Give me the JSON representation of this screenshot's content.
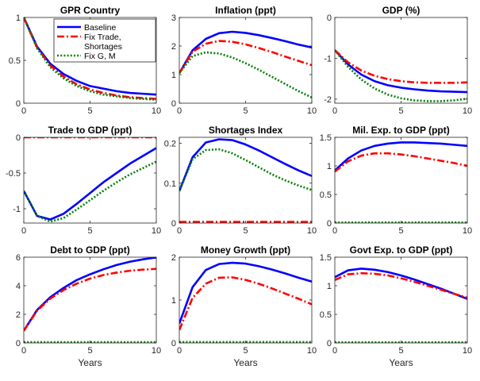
{
  "chart_data": {
    "type": "line",
    "legend": {
      "location": "first-panel-top-right",
      "entries": [
        "Baseline",
        "Fix Trade, Shortages",
        "Fix G, M"
      ]
    },
    "series_styles": [
      {
        "name": "Baseline",
        "color": "#0000ff",
        "dash": "solid"
      },
      {
        "name": "Fix Trade, Shortages",
        "color": "#ff0000",
        "dash": "dashdot"
      },
      {
        "name": "Fix G, M",
        "color": "#008000",
        "dash": "dotted"
      }
    ],
    "x": [
      0,
      1,
      2,
      3,
      4,
      5,
      6,
      7,
      8,
      9,
      10
    ],
    "panels": [
      {
        "title": "GPR Country",
        "xlabel": "",
        "ylim": [
          0,
          1
        ],
        "yticks": [
          "0",
          "0.5",
          "1"
        ],
        "xticks": [
          "0",
          "5",
          "10"
        ],
        "has_legend": true,
        "series": [
          {
            "name": "Baseline",
            "values": [
              1.0,
              0.66,
              0.46,
              0.34,
              0.26,
              0.2,
              0.17,
              0.14,
              0.12,
              0.11,
              0.1
            ]
          },
          {
            "name": "Fix Trade, Shortages",
            "values": [
              1.0,
              0.65,
              0.44,
              0.31,
              0.22,
              0.16,
              0.12,
              0.09,
              0.07,
              0.06,
              0.05
            ]
          },
          {
            "name": "Fix G, M",
            "values": [
              1.0,
              0.64,
              0.42,
              0.29,
              0.2,
              0.14,
              0.1,
              0.08,
              0.06,
              0.05,
              0.04
            ]
          }
        ]
      },
      {
        "title": "Inflation (ppt)",
        "xlabel": "",
        "ylim": [
          0,
          3
        ],
        "yticks": [
          "0",
          "1",
          "2",
          "3"
        ],
        "xticks": [
          "0",
          "5",
          "10"
        ],
        "has_legend": false,
        "series": [
          {
            "name": "Baseline",
            "values": [
              1.05,
              1.85,
              2.25,
              2.45,
              2.5,
              2.46,
              2.38,
              2.28,
              2.17,
              2.05,
              1.95
            ]
          },
          {
            "name": "Fix Trade, Shortages",
            "values": [
              1.05,
              1.8,
              2.08,
              2.18,
              2.15,
              2.06,
              1.93,
              1.79,
              1.63,
              1.48,
              1.33
            ]
          },
          {
            "name": "Fix G, M",
            "values": [
              1.05,
              1.65,
              1.78,
              1.74,
              1.6,
              1.4,
              1.17,
              0.92,
              0.67,
              0.42,
              0.2
            ]
          }
        ]
      },
      {
        "title": "GDP (%)",
        "xlabel": "",
        "ylim": [
          -2.1,
          0
        ],
        "yticks": [
          "-2",
          "-1",
          "0"
        ],
        "xticks": [
          "0",
          "5",
          "10"
        ],
        "has_legend": false,
        "series": [
          {
            "name": "Baseline",
            "values": [
              -0.8,
              -1.15,
              -1.4,
              -1.56,
              -1.66,
              -1.72,
              -1.76,
              -1.79,
              -1.81,
              -1.82,
              -1.83
            ]
          },
          {
            "name": "Fix Trade, Shortages",
            "values": [
              -0.8,
              -1.1,
              -1.3,
              -1.43,
              -1.51,
              -1.56,
              -1.59,
              -1.6,
              -1.6,
              -1.6,
              -1.59
            ]
          },
          {
            "name": "Fix G, M",
            "values": [
              -0.8,
              -1.21,
              -1.52,
              -1.74,
              -1.89,
              -1.98,
              -2.03,
              -2.05,
              -2.05,
              -2.03,
              -1.99
            ]
          }
        ]
      },
      {
        "title": "Trade to GDP (ppt)",
        "xlabel": "",
        "ylim": [
          -1.2,
          0
        ],
        "yticks": [
          "-1",
          "-0.5",
          "0"
        ],
        "xticks": [
          "0",
          "5",
          "10"
        ],
        "has_legend": false,
        "series": [
          {
            "name": "Baseline",
            "values": [
              -0.75,
              -1.1,
              -1.15,
              -1.07,
              -0.93,
              -0.78,
              -0.63,
              -0.5,
              -0.37,
              -0.26,
              -0.15
            ]
          },
          {
            "name": "Fix Trade, Shortages",
            "values": [
              0,
              0,
              0,
              0,
              0,
              0,
              0,
              0,
              0,
              0,
              0
            ]
          },
          {
            "name": "Fix G, M",
            "values": [
              -0.75,
              -1.1,
              -1.18,
              -1.13,
              -1.01,
              -0.88,
              -0.75,
              -0.63,
              -0.52,
              -0.43,
              -0.34
            ]
          }
        ]
      },
      {
        "title": "Shortages Index",
        "xlabel": "",
        "ylim": [
          0,
          0.215
        ],
        "yticks": [
          "0",
          "0.1",
          "0.2"
        ],
        "xticks": [
          "0",
          "5",
          "10"
        ],
        "has_legend": false,
        "series": [
          {
            "name": "Baseline",
            "values": [
              0.08,
              0.165,
              0.202,
              0.21,
              0.208,
              0.197,
              0.182,
              0.165,
              0.148,
              0.132,
              0.118
            ]
          },
          {
            "name": "Fix Trade, Shortages",
            "values": [
              0.003,
              0.003,
              0.003,
              0.003,
              0.003,
              0.003,
              0.003,
              0.003,
              0.003,
              0.003,
              0.003
            ]
          },
          {
            "name": "Fix G, M",
            "values": [
              0.08,
              0.16,
              0.183,
              0.185,
              0.175,
              0.158,
              0.14,
              0.122,
              0.107,
              0.094,
              0.083
            ]
          }
        ]
      },
      {
        "title": "Mil. Exp. to GDP (ppt)",
        "xlabel": "",
        "ylim": [
          0,
          1.5
        ],
        "yticks": [
          "0",
          "0.5",
          "1",
          "1.5"
        ],
        "xticks": [
          "0",
          "5",
          "10"
        ],
        "has_legend": false,
        "series": [
          {
            "name": "Baseline",
            "values": [
              0.92,
              1.13,
              1.27,
              1.35,
              1.39,
              1.41,
              1.41,
              1.4,
              1.39,
              1.37,
              1.35
            ]
          },
          {
            "name": "Fix Trade, Shortages",
            "values": [
              0.9,
              1.08,
              1.18,
              1.22,
              1.22,
              1.2,
              1.17,
              1.13,
              1.09,
              1.05,
              1.0
            ]
          },
          {
            "name": "Fix G, M",
            "values": [
              0.01,
              0.01,
              0.01,
              0.01,
              0.01,
              0.01,
              0.01,
              0.01,
              0.01,
              0.01,
              0.01
            ]
          }
        ]
      },
      {
        "title": "Debt to GDP (ppt)",
        "xlabel": "Years",
        "ylim": [
          0,
          6
        ],
        "yticks": [
          "0",
          "2",
          "4",
          "6"
        ],
        "xticks": [
          "0",
          "5",
          "10"
        ],
        "has_legend": false,
        "series": [
          {
            "name": "Baseline",
            "values": [
              0.85,
              2.3,
              3.2,
              3.85,
              4.4,
              4.8,
              5.15,
              5.45,
              5.68,
              5.85,
              5.98
            ]
          },
          {
            "name": "Fix Trade, Shortages",
            "values": [
              0.85,
              2.25,
              3.1,
              3.7,
              4.15,
              4.5,
              4.75,
              4.92,
              5.05,
              5.13,
              5.18
            ]
          },
          {
            "name": "Fix G, M",
            "values": [
              0.05,
              0.05,
              0.05,
              0.05,
              0.05,
              0.05,
              0.05,
              0.05,
              0.05,
              0.05,
              0.05
            ]
          }
        ]
      },
      {
        "title": "Money Growth (ppt)",
        "xlabel": "Years",
        "ylim": [
          0,
          2
        ],
        "yticks": [
          "0",
          "1",
          "2"
        ],
        "xticks": [
          "0",
          "5",
          "10"
        ],
        "has_legend": false,
        "series": [
          {
            "name": "Baseline",
            "values": [
              0.45,
              1.3,
              1.7,
              1.84,
              1.87,
              1.85,
              1.79,
              1.71,
              1.62,
              1.52,
              1.43
            ]
          },
          {
            "name": "Fix Trade, Shortages",
            "values": [
              0.3,
              1.05,
              1.38,
              1.52,
              1.53,
              1.47,
              1.38,
              1.27,
              1.15,
              1.03,
              0.9
            ]
          },
          {
            "name": "Fix G, M",
            "values": [
              0.02,
              0.02,
              0.02,
              0.02,
              0.02,
              0.02,
              0.02,
              0.02,
              0.02,
              0.02,
              0.02
            ]
          }
        ]
      },
      {
        "title": "Govt Exp. to GDP (ppt)",
        "xlabel": "Years",
        "ylim": [
          0,
          1.5
        ],
        "yticks": [
          "0",
          "0.5",
          "1",
          "1.5"
        ],
        "xticks": [
          "0",
          "5",
          "10"
        ],
        "has_legend": false,
        "series": [
          {
            "name": "Baseline",
            "values": [
              1.15,
              1.27,
              1.3,
              1.28,
              1.24,
              1.18,
              1.11,
              1.03,
              0.95,
              0.86,
              0.77
            ]
          },
          {
            "name": "Fix Trade, Shortages",
            "values": [
              1.1,
              1.2,
              1.22,
              1.21,
              1.18,
              1.13,
              1.07,
              1.0,
              0.93,
              0.86,
              0.79
            ]
          },
          {
            "name": "Fix G, M",
            "values": [
              0.01,
              0.01,
              0.01,
              0.01,
              0.01,
              0.01,
              0.01,
              0.01,
              0.01,
              0.01,
              0.01
            ]
          }
        ]
      }
    ]
  }
}
